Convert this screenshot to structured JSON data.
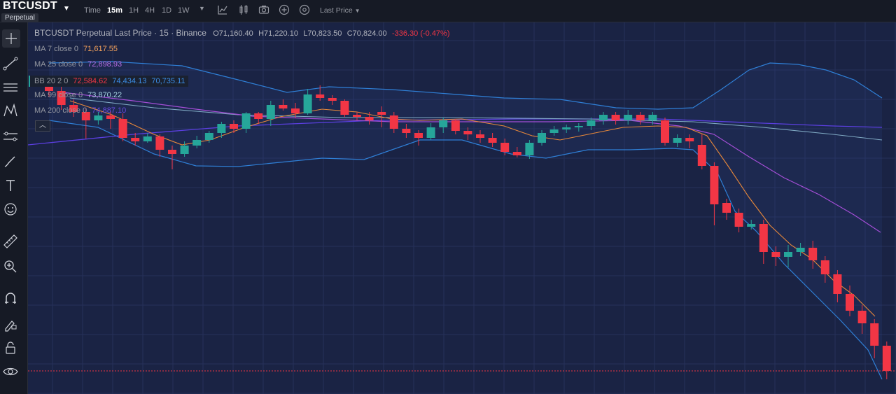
{
  "header": {
    "symbol": "BTCUSDT",
    "badge": "Perpetual",
    "time_label": "Time",
    "timeframes": [
      "15m",
      "1H",
      "4H",
      "1D",
      "1W"
    ],
    "active_timeframe": "15m",
    "price_source": "Last Price"
  },
  "legend": {
    "title": "BTCUSDT Perpetual Last Price · 15 · Binance",
    "open": "O71,160.40",
    "high": "H71,220.10",
    "low": "L70,823.50",
    "close": "C70,824.00",
    "change": "-336.30 (-0.47%)"
  },
  "indicators": [
    {
      "label": "MA 7 close 0",
      "value": "71,617.55",
      "color": "#f7a35c"
    },
    {
      "label": "MA 25 close 0",
      "value": "72,898.93",
      "color": "#b76de4"
    },
    {
      "label": "BB 20 2 0",
      "values": [
        "72,584.62",
        "74,434.13",
        "70,735.11"
      ],
      "colors": [
        "#f23645",
        "#2962ff",
        "#2962ff"
      ]
    },
    {
      "label": "MA 99 close 0",
      "value": "73,870.22",
      "color": "#7fb6c8"
    },
    {
      "label": "MA 200 close 0",
      "value": "74,887.10",
      "color": "#6a4be4"
    }
  ],
  "colors": {
    "up": "#26a69a",
    "down": "#f23645",
    "ma7": "#e8883a",
    "ma25": "#a44ed6",
    "ma99": "#7fa9c3",
    "ma200": "#5b3fe0",
    "bb": "#2f7fd6",
    "background": "#1a2344"
  },
  "toolbar": {
    "icons": [
      "crosshair-icon",
      "trend-line-icon",
      "fib-icon",
      "pattern-icon",
      "prediction-icon",
      "brush-icon",
      "text-icon",
      "emoji-icon",
      "ruler-icon",
      "zoom-in-icon",
      "magnet-icon",
      "lock-drawing-icon",
      "lock-icon",
      "eye-icon"
    ]
  }
}
